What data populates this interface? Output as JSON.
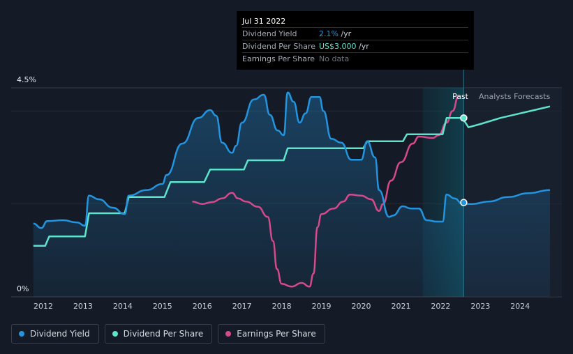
{
  "chart_data": {
    "type": "line",
    "y_axis_labels": [
      "4.5%",
      "0%"
    ],
    "ylim": [
      0,
      4.5
    ],
    "x_ticks": [
      2012,
      2013,
      2014,
      2015,
      2016,
      2017,
      2018,
      2019,
      2020,
      2021,
      2022,
      2023,
      2024
    ],
    "xlim": [
      2011.7,
      2024.75
    ],
    "past_label": "Past",
    "forecast_label": "Analysts Forecasts",
    "forecast_start": 2021.55,
    "forecast_split": 2022.58,
    "legend_position": "bottom-left",
    "series": [
      {
        "name": "Dividend Yield",
        "color": "#2394df",
        "values": [
          [
            2011.75,
            1.58
          ],
          [
            2011.95,
            1.48
          ],
          [
            2012.1,
            1.63
          ],
          [
            2012.5,
            1.65
          ],
          [
            2012.85,
            1.6
          ],
          [
            2013.05,
            1.53
          ],
          [
            2013.15,
            2.18
          ],
          [
            2013.4,
            2.1
          ],
          [
            2013.75,
            1.92
          ],
          [
            2014.05,
            1.78
          ],
          [
            2014.15,
            2.18
          ],
          [
            2014.6,
            2.3
          ],
          [
            2015.0,
            2.43
          ],
          [
            2015.1,
            2.62
          ],
          [
            2015.5,
            3.3
          ],
          [
            2015.9,
            3.85
          ],
          [
            2016.2,
            4.02
          ],
          [
            2016.35,
            3.9
          ],
          [
            2016.5,
            3.32
          ],
          [
            2016.75,
            3.1
          ],
          [
            2016.85,
            3.25
          ],
          [
            2017.0,
            3.75
          ],
          [
            2017.3,
            4.25
          ],
          [
            2017.55,
            4.35
          ],
          [
            2017.7,
            3.92
          ],
          [
            2017.9,
            3.58
          ],
          [
            2018.05,
            3.48
          ],
          [
            2018.15,
            4.4
          ],
          [
            2018.3,
            4.2
          ],
          [
            2018.45,
            3.75
          ],
          [
            2018.6,
            3.95
          ],
          [
            2018.75,
            4.3
          ],
          [
            2018.95,
            4.3
          ],
          [
            2019.05,
            4.0
          ],
          [
            2019.25,
            3.4
          ],
          [
            2019.5,
            3.32
          ],
          [
            2019.75,
            2.95
          ],
          [
            2020.0,
            2.95
          ],
          [
            2020.15,
            3.35
          ],
          [
            2020.35,
            3.0
          ],
          [
            2020.45,
            2.3
          ],
          [
            2020.7,
            1.72
          ],
          [
            2020.8,
            1.75
          ],
          [
            2021.05,
            1.95
          ],
          [
            2021.25,
            1.9
          ],
          [
            2021.45,
            1.9
          ],
          [
            2021.65,
            1.65
          ],
          [
            2021.9,
            1.62
          ],
          [
            2022.05,
            1.62
          ],
          [
            2022.15,
            2.2
          ],
          [
            2022.35,
            2.12
          ],
          [
            2022.55,
            2.0
          ],
          [
            2022.8,
            2.0
          ],
          [
            2023.2,
            2.05
          ],
          [
            2023.7,
            2.15
          ],
          [
            2024.2,
            2.23
          ],
          [
            2024.75,
            2.3
          ]
        ]
      },
      {
        "name": "Dividend Per Share",
        "color": "#5ee4cc",
        "values": [
          [
            2011.75,
            1.1
          ],
          [
            2012.05,
            1.1
          ],
          [
            2012.15,
            1.3
          ],
          [
            2013.05,
            1.3
          ],
          [
            2013.15,
            1.8
          ],
          [
            2014.05,
            1.8
          ],
          [
            2014.15,
            2.15
          ],
          [
            2015.05,
            2.15
          ],
          [
            2015.2,
            2.47
          ],
          [
            2016.05,
            2.47
          ],
          [
            2016.2,
            2.74
          ],
          [
            2017.05,
            2.74
          ],
          [
            2017.15,
            2.94
          ],
          [
            2018.05,
            2.94
          ],
          [
            2018.15,
            3.2
          ],
          [
            2020.05,
            3.2
          ],
          [
            2020.15,
            3.35
          ],
          [
            2021.05,
            3.35
          ],
          [
            2021.15,
            3.5
          ],
          [
            2022.05,
            3.5
          ],
          [
            2022.15,
            3.85
          ],
          [
            2022.55,
            3.85
          ],
          [
            2022.7,
            3.65
          ],
          [
            2023.0,
            3.72
          ],
          [
            2023.5,
            3.85
          ],
          [
            2024.0,
            3.95
          ],
          [
            2024.75,
            4.1
          ]
        ]
      },
      {
        "name": "Earnings Per Share",
        "color": "#d64a8c",
        "values": [
          [
            2015.75,
            2.05
          ],
          [
            2016.0,
            2.0
          ],
          [
            2016.25,
            2.04
          ],
          [
            2016.5,
            2.12
          ],
          [
            2016.75,
            2.24
          ],
          [
            2016.9,
            2.12
          ],
          [
            2017.1,
            2.05
          ],
          [
            2017.4,
            1.94
          ],
          [
            2017.65,
            1.72
          ],
          [
            2017.78,
            1.2
          ],
          [
            2017.88,
            0.6
          ],
          [
            2018.0,
            0.28
          ],
          [
            2018.25,
            0.22
          ],
          [
            2018.5,
            0.3
          ],
          [
            2018.7,
            0.22
          ],
          [
            2018.8,
            0.5
          ],
          [
            2018.9,
            1.5
          ],
          [
            2019.0,
            1.78
          ],
          [
            2019.3,
            1.9
          ],
          [
            2019.55,
            2.05
          ],
          [
            2019.72,
            2.2
          ],
          [
            2020.0,
            2.18
          ],
          [
            2020.25,
            2.1
          ],
          [
            2020.45,
            1.85
          ],
          [
            2020.55,
            2.0
          ],
          [
            2020.75,
            2.5
          ],
          [
            2021.0,
            2.9
          ],
          [
            2021.3,
            3.3
          ],
          [
            2021.45,
            3.45
          ],
          [
            2021.8,
            3.42
          ],
          [
            2021.95,
            3.48
          ],
          [
            2022.15,
            3.75
          ],
          [
            2022.3,
            4.0
          ],
          [
            2022.45,
            4.32
          ]
        ]
      }
    ],
    "markers": [
      {
        "series": "Dividend Yield",
        "x": 2022.58,
        "y": 2.03
      },
      {
        "series": "Dividend Per Share",
        "x": 2022.58,
        "y": 3.85
      }
    ]
  },
  "tooltip": {
    "date": "Jul 31 2022",
    "rows": [
      {
        "label": "Dividend Yield",
        "value": "2.1%",
        "unit": " /yr",
        "color": "#2394df"
      },
      {
        "label": "Dividend Per Share",
        "value": "US$3.000",
        "unit": " /yr",
        "color": "#5ee4cc"
      },
      {
        "label": "Earnings Per Share",
        "value": "No data",
        "unit": "",
        "color": "#6c727c"
      }
    ]
  },
  "legend": [
    {
      "label": "Dividend Yield",
      "color": "#2394df"
    },
    {
      "label": "Dividend Per Share",
      "color": "#5ee4cc"
    },
    {
      "label": "Earnings Per Share",
      "color": "#d64a8c"
    }
  ]
}
